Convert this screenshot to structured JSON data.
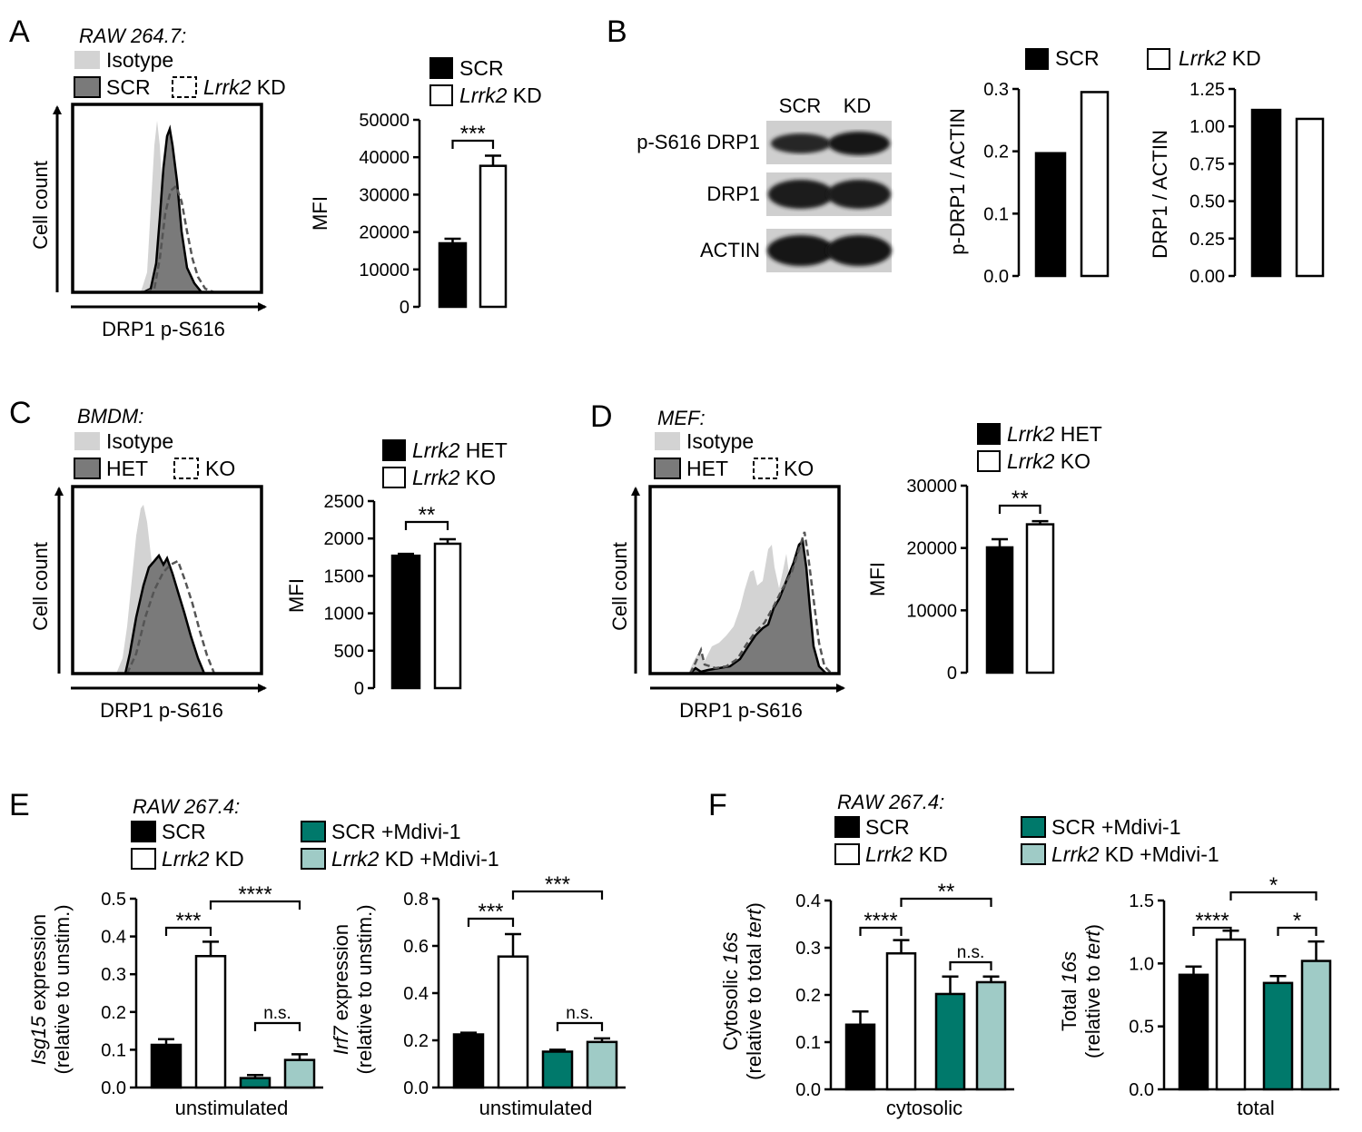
{
  "colors": {
    "black": "#000000",
    "white": "#ffffff",
    "isotype": "#d3d3d3",
    "het_fill": "#7a7a7a",
    "teal": "#00796b",
    "light_teal": "#9fcbc6",
    "blot_band": "#1a1a1a",
    "blot_bg": "#cfcfcf"
  },
  "panels": {
    "A": {
      "letter": "A",
      "cell_line": "RAW 264.7:",
      "legend_isotype": "Isotype",
      "legend_scr": "SCR",
      "legend_gene": "Lrrk2",
      "legend_kd": "KD",
      "x_label": "DRP1 p-S616",
      "y_label": "Cell count"
    },
    "B": {
      "letter": "B",
      "blot": {
        "lanes": [
          "SCR",
          "KD"
        ],
        "rows": [
          "p-S616 DRP1",
          "DRP1",
          "ACTIN"
        ]
      },
      "legend_scr": "SCR",
      "legend_gene": "Lrrk2",
      "legend_kd": "KD"
    },
    "C": {
      "letter": "C",
      "cell_line": "BMDM:",
      "legend_isotype": "Isotype",
      "legend_het": "HET",
      "legend_ko": "KO",
      "x_label": "DRP1 p-S616",
      "y_label": "Cell count"
    },
    "D": {
      "letter": "D",
      "cell_line": "MEF:",
      "legend_isotype": "Isotype",
      "legend_het": "HET",
      "legend_ko": "KO",
      "x_label": "DRP1 p-S616",
      "y_label": "Cell count"
    },
    "E": {
      "letter": "E",
      "cell_line": "RAW 267.4:",
      "legend": [
        {
          "gene": "",
          "label": "SCR",
          "color": "#000000"
        },
        {
          "gene": "Lrrk2",
          "label": "KD",
          "color": "#ffffff"
        },
        {
          "gene": "",
          "label": "SCR +Mdivi-1",
          "color": "#00796b"
        },
        {
          "gene": "Lrrk2",
          "label": "KD +Mdivi-1",
          "color": "#9fcbc6"
        }
      ]
    },
    "F": {
      "letter": "F",
      "cell_line": "RAW 267.4:",
      "legend": [
        {
          "gene": "",
          "label": "SCR",
          "color": "#000000"
        },
        {
          "gene": "Lrrk2",
          "label": "KD",
          "color": "#ffffff"
        },
        {
          "gene": "",
          "label": "SCR +Mdivi-1",
          "color": "#00796b"
        },
        {
          "gene": "Lrrk2",
          "label": "KD +Mdivi-1",
          "color": "#9fcbc6"
        }
      ]
    }
  },
  "chart_data": [
    {
      "id": "A_mfi",
      "type": "bar",
      "legend": [
        {
          "gene": "",
          "label": "SCR",
          "color": "#000000"
        },
        {
          "gene": "Lrrk2",
          "label": "KD",
          "color": "#ffffff"
        }
      ],
      "ylabel": "MFI",
      "xlabel": "",
      "ylim": [
        0,
        50000
      ],
      "ticks": [
        0,
        10000,
        20000,
        30000,
        40000,
        50000
      ],
      "tick_labels": [
        "0",
        "10000",
        "20000",
        "30000",
        "40000",
        "50000"
      ],
      "bars": [
        {
          "category": "SCR",
          "value": 17000,
          "error": 1200,
          "color": "#000000"
        },
        {
          "category": "Lrrk2 KD",
          "value": 37700,
          "error": 2700,
          "color": "#ffffff"
        }
      ],
      "significance": [
        {
          "from": 0,
          "to": 1,
          "label": "***"
        }
      ]
    },
    {
      "id": "B_pdrp1",
      "type": "bar",
      "ylabel": "p-DRP1 / ACTIN",
      "xlabel": "",
      "ylim": [
        0,
        0.3
      ],
      "ticks": [
        0,
        0.1,
        0.2,
        0.3
      ],
      "tick_labels": [
        "0.0",
        "0.1",
        "0.2",
        "0.3"
      ],
      "bars": [
        {
          "category": "SCR",
          "value": 0.197,
          "error": 0,
          "color": "#000000"
        },
        {
          "category": "Lrrk2 KD",
          "value": 0.295,
          "error": 0,
          "color": "#ffffff"
        }
      ]
    },
    {
      "id": "B_drp1",
      "type": "bar",
      "ylabel": "DRP1 / ACTIN",
      "xlabel": "",
      "ylim": [
        0,
        1.25
      ],
      "ticks": [
        0,
        0.25,
        0.5,
        0.75,
        1.0,
        1.25
      ],
      "tick_labels": [
        "0.00",
        "0.25",
        "0.50",
        "0.75",
        "1.00",
        "1.25"
      ],
      "bars": [
        {
          "category": "SCR",
          "value": 1.11,
          "error": 0,
          "color": "#000000"
        },
        {
          "category": "Lrrk2 KD",
          "value": 1.05,
          "error": 0,
          "color": "#ffffff"
        }
      ]
    },
    {
      "id": "C_mfi",
      "type": "bar",
      "legend": [
        {
          "gene": "Lrrk2",
          "label": "HET",
          "color": "#000000"
        },
        {
          "gene": "Lrrk2",
          "label": "KO",
          "color": "#ffffff"
        }
      ],
      "ylabel": "MFI",
      "xlabel": "",
      "ylim": [
        0,
        2500
      ],
      "ticks": [
        0,
        500,
        1000,
        1500,
        2000,
        2500
      ],
      "tick_labels": [
        "0",
        "500",
        "1000",
        "1500",
        "2000",
        "2500"
      ],
      "bars": [
        {
          "category": "Lrrk2 HET",
          "value": 1770,
          "error": 25,
          "color": "#000000"
        },
        {
          "category": "Lrrk2 KO",
          "value": 1930,
          "error": 60,
          "color": "#ffffff"
        }
      ],
      "significance": [
        {
          "from": 0,
          "to": 1,
          "label": "**"
        }
      ]
    },
    {
      "id": "D_mfi",
      "type": "bar",
      "legend": [
        {
          "gene": "Lrrk2",
          "label": "HET",
          "color": "#000000"
        },
        {
          "gene": "Lrrk2",
          "label": "KO",
          "color": "#ffffff"
        }
      ],
      "ylabel": "MFI",
      "xlabel": "",
      "ylim": [
        0,
        30000
      ],
      "ticks": [
        0,
        10000,
        20000,
        30000
      ],
      "tick_labels": [
        "0",
        "10000",
        "20000",
        "30000"
      ],
      "bars": [
        {
          "category": "Lrrk2 HET",
          "value": 20100,
          "error": 1300,
          "color": "#000000"
        },
        {
          "category": "Lrrk2 KO",
          "value": 23800,
          "error": 500,
          "color": "#ffffff"
        }
      ],
      "significance": [
        {
          "from": 0,
          "to": 1,
          "label": "**"
        }
      ]
    },
    {
      "id": "E_isg15",
      "type": "bar",
      "ylabel_gene": "Isg15",
      "ylabel_rest": " expression",
      "ylabel2": "(relative to unstim.)",
      "xlabel": "unstimulated",
      "ylim": [
        0,
        0.5
      ],
      "ticks": [
        0,
        0.1,
        0.2,
        0.3,
        0.4,
        0.5
      ],
      "tick_labels": [
        "0.0",
        "0.1",
        "0.2",
        "0.3",
        "0.4",
        "0.5"
      ],
      "bars": [
        {
          "category": "SCR",
          "value": 0.113,
          "error": 0.015,
          "color": "#000000"
        },
        {
          "category": "Lrrk2 KD",
          "value": 0.348,
          "error": 0.038,
          "color": "#ffffff"
        },
        {
          "category": "SCR +Mdivi-1",
          "value": 0.025,
          "error": 0.008,
          "color": "#00796b"
        },
        {
          "category": "Lrrk2 KD +Mdivi-1",
          "value": 0.073,
          "error": 0.015,
          "color": "#9fcbc6"
        }
      ],
      "significance": [
        {
          "from": 0,
          "to": 1,
          "label": "***"
        },
        {
          "from": 1,
          "to": 3,
          "label": "****"
        },
        {
          "from": 2,
          "to": 3,
          "label": "n.s."
        }
      ]
    },
    {
      "id": "E_irf7",
      "type": "bar",
      "ylabel_gene": "Irf7",
      "ylabel_rest": " expression",
      "ylabel2": "(relative to unstim.)",
      "xlabel": "unstimulated",
      "ylim": [
        0,
        0.8
      ],
      "ticks": [
        0,
        0.2,
        0.4,
        0.6,
        0.8
      ],
      "tick_labels": [
        "0.0",
        "0.2",
        "0.4",
        "0.6",
        "0.8"
      ],
      "bars": [
        {
          "category": "SCR",
          "value": 0.225,
          "error": 0.007,
          "color": "#000000"
        },
        {
          "category": "Lrrk2 KD",
          "value": 0.555,
          "error": 0.095,
          "color": "#ffffff"
        },
        {
          "category": "SCR +Mdivi-1",
          "value": 0.152,
          "error": 0.008,
          "color": "#00796b"
        },
        {
          "category": "Lrrk2 KD +Mdivi-1",
          "value": 0.193,
          "error": 0.015,
          "color": "#9fcbc6"
        }
      ],
      "significance": [
        {
          "from": 0,
          "to": 1,
          "label": "***"
        },
        {
          "from": 1,
          "to": 3,
          "label": "***"
        },
        {
          "from": 2,
          "to": 3,
          "label": "n.s."
        }
      ]
    },
    {
      "id": "F_cyto",
      "type": "bar",
      "ylabel_pre": "Cytosolic ",
      "ylabel_gene": "16s",
      "ylabel2_pre": "(relative to total ",
      "ylabel2_gene": "tert",
      "ylabel2_post": ")",
      "xlabel": "cytosolic",
      "ylim": [
        0,
        0.4
      ],
      "ticks": [
        0,
        0.1,
        0.2,
        0.3,
        0.4
      ],
      "tick_labels": [
        "0.0",
        "0.1",
        "0.2",
        "0.3",
        "0.4"
      ],
      "bars": [
        {
          "category": "SCR",
          "value": 0.137,
          "error": 0.028,
          "color": "#000000"
        },
        {
          "category": "Lrrk2 KD",
          "value": 0.288,
          "error": 0.028,
          "color": "#ffffff"
        },
        {
          "category": "SCR +Mdivi-1",
          "value": 0.202,
          "error": 0.037,
          "color": "#00796b"
        },
        {
          "category": "Lrrk2 KD +Mdivi-1",
          "value": 0.227,
          "error": 0.012,
          "color": "#9fcbc6"
        }
      ],
      "significance": [
        {
          "from": 0,
          "to": 1,
          "label": "****"
        },
        {
          "from": 1,
          "to": 3,
          "label": "**"
        },
        {
          "from": 2,
          "to": 3,
          "label": "n.s."
        }
      ]
    },
    {
      "id": "F_total",
      "type": "bar",
      "ylabel_pre": "Total ",
      "ylabel_gene": "16s",
      "ylabel2_pre": "(relative to ",
      "ylabel2_gene": "tert",
      "ylabel2_post": ")",
      "xlabel": "total",
      "ylim": [
        0,
        1.5
      ],
      "ticks": [
        0,
        0.5,
        1.0,
        1.5
      ],
      "tick_labels": [
        "0.0",
        "0.5",
        "1.0",
        "1.5"
      ],
      "bars": [
        {
          "category": "SCR",
          "value": 0.91,
          "error": 0.065,
          "color": "#000000"
        },
        {
          "category": "Lrrk2 KD",
          "value": 1.19,
          "error": 0.07,
          "color": "#ffffff"
        },
        {
          "category": "SCR +Mdivi-1",
          "value": 0.845,
          "error": 0.055,
          "color": "#00796b"
        },
        {
          "category": "Lrrk2 KD +Mdivi-1",
          "value": 1.02,
          "error": 0.155,
          "color": "#9fcbc6"
        }
      ],
      "significance": [
        {
          "from": 0,
          "to": 1,
          "label": "****"
        },
        {
          "from": 1,
          "to": 3,
          "label": "*"
        },
        {
          "from": 2,
          "to": 3,
          "label": "*"
        }
      ]
    }
  ]
}
